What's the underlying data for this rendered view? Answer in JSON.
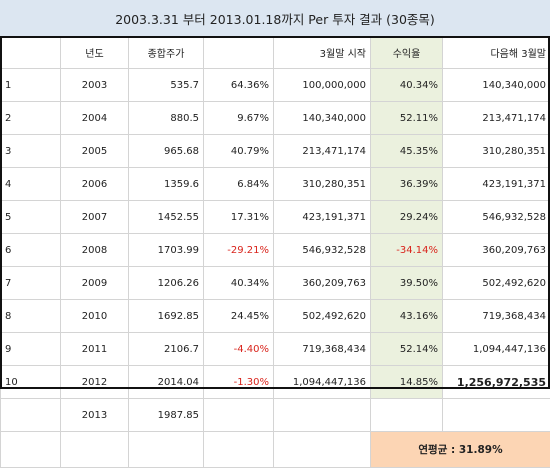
{
  "title": "2003.3.31 부터 2013.01.18까지 Per 투자 결과 (30종목)",
  "headers": [
    "",
    "년도",
    "종합주가",
    "",
    "3월말 시작",
    "수익율",
    "다음해 3월말"
  ],
  "rows": [
    {
      "no": "1",
      "year": "2003",
      "index": "535.7",
      "change": "64.36%",
      "start": "100,000,000",
      "ret": "40.34%",
      "next": "140,340,000"
    },
    {
      "no": "2",
      "year": "2004",
      "index": "880.5",
      "change": "9.67%",
      "start": "140,340,000",
      "ret": "52.11%",
      "next": "213,471,174"
    },
    {
      "no": "3",
      "year": "2005",
      "index": "965.68",
      "change": "40.79%",
      "start": "213,471,174",
      "ret": "45.35%",
      "next": "310,280,351"
    },
    {
      "no": "4",
      "year": "2006",
      "index": "1359.6",
      "change": "6.84%",
      "start": "310,280,351",
      "ret": "36.39%",
      "next": "423,191,371"
    },
    {
      "no": "5",
      "year": "2007",
      "index": "1452.55",
      "change": "17.31%",
      "start": "423,191,371",
      "ret": "29.24%",
      "next": "546,932,528"
    },
    {
      "no": "6",
      "year": "2008",
      "index": "1703.99",
      "change": "-29.21%",
      "start": "546,932,528",
      "ret": "-34.14%",
      "next": "360,209,763"
    },
    {
      "no": "7",
      "year": "2009",
      "index": "1206.26",
      "change": "40.34%",
      "start": "360,209,763",
      "ret": "39.50%",
      "next": "502,492,620"
    },
    {
      "no": "8",
      "year": "2010",
      "index": "1692.85",
      "change": "24.45%",
      "start": "502,492,620",
      "ret": "43.16%",
      "next": "719,368,434"
    },
    {
      "no": "9",
      "year": "2011",
      "index": "2106.7",
      "change": "-4.40%",
      "start": "719,368,434",
      "ret": "52.14%",
      "next": "1,094,447,136"
    },
    {
      "no": "10",
      "year": "2012",
      "index": "2014.04",
      "change": "-1.30%",
      "start": "1,094,447,136",
      "ret": "14.85%",
      "next": "1,256,972,535"
    }
  ],
  "last_row": {
    "year": "2013",
    "index": "1987.85"
  },
  "average": "연평균 : 31.89%",
  "colors": {
    "title_bg": "#dce6f1",
    "return_col_bg": "#ebf1de",
    "average_bg": "#fcd5b4",
    "negative": "#d9241c"
  }
}
